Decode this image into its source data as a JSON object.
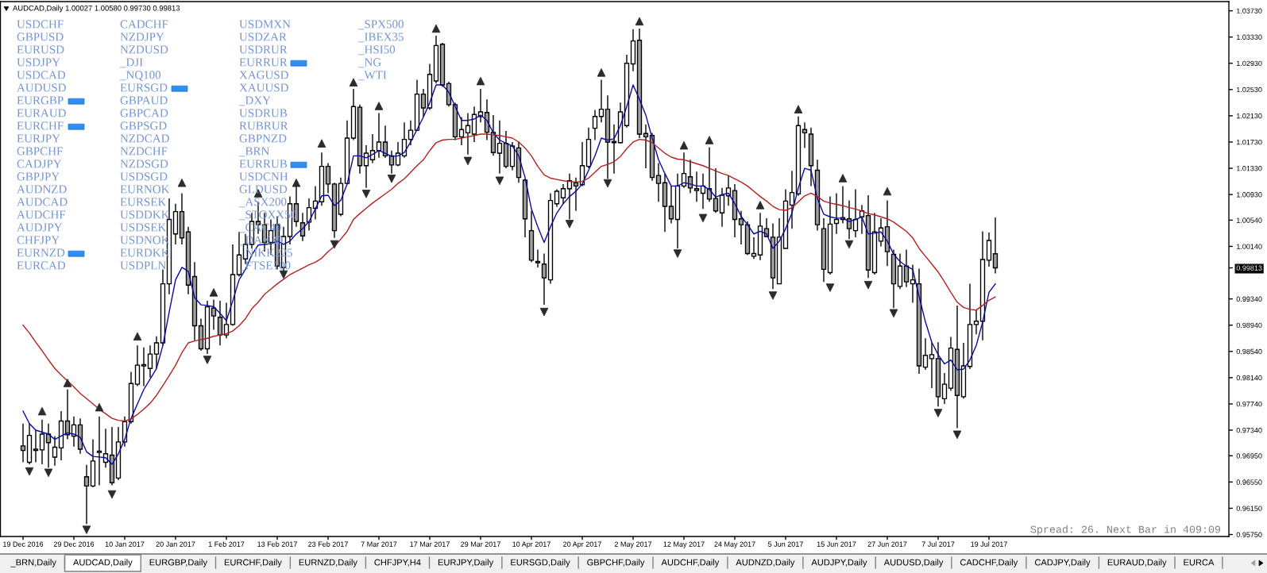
{
  "chart_data": {
    "type": "candlestick",
    "title": "AUDCAD,Daily 1.00027 1.00580 0.99730 0.99813",
    "categories": [
      "19 Dec 2016",
      null,
      null,
      null,
      null,
      null,
      null,
      null,
      "29 Dec 2016",
      null,
      null,
      null,
      null,
      null,
      null,
      null,
      "10 Jan 2017",
      null,
      null,
      null,
      null,
      null,
      null,
      null,
      "20 Jan 2017",
      null,
      null,
      null,
      null,
      null,
      null,
      null,
      "1 Feb 2017",
      null,
      null,
      null,
      null,
      null,
      null,
      null,
      "13 Feb 2017",
      null,
      null,
      null,
      null,
      null,
      null,
      null,
      "23 Feb 2017",
      null,
      null,
      null,
      null,
      null,
      null,
      null,
      "7 Mar 2017",
      null,
      null,
      null,
      null,
      null,
      null,
      null,
      "17 Mar 2017",
      null,
      null,
      null,
      null,
      null,
      null,
      null,
      "29 Mar 2017",
      null,
      null,
      null,
      null,
      null,
      null,
      null,
      "10 Apr 2017",
      null,
      null,
      null,
      null,
      null,
      null,
      null,
      "20 Apr 2017",
      null,
      null,
      null,
      null,
      null,
      null,
      null,
      "2 May 2017",
      null,
      null,
      null,
      null,
      null,
      null,
      null,
      "12 May 2017",
      null,
      null,
      null,
      null,
      null,
      null,
      null,
      "24 May 2017",
      null,
      null,
      null,
      null,
      null,
      null,
      null,
      "5 Jun 2017",
      null,
      null,
      null,
      null,
      null,
      null,
      null,
      "15 Jun 2017",
      null,
      null,
      null,
      null,
      null,
      null,
      null,
      "27 Jun 2017",
      null,
      null,
      null,
      null,
      null,
      null,
      null,
      "7 Jul 2017",
      null,
      null,
      null,
      null,
      null,
      null,
      null,
      "19 Jul 2017",
      null
    ],
    "ohlc": [
      [
        0.971,
        0.9744,
        0.9685,
        0.9703
      ],
      [
        0.9685,
        0.9744,
        0.9682,
        0.9726
      ],
      [
        0.9703,
        0.9734,
        0.9685,
        0.9705
      ],
      [
        0.9704,
        0.975,
        0.9682,
        0.9728
      ],
      [
        0.9728,
        0.9744,
        0.9677,
        0.9715
      ],
      [
        0.9693,
        0.9725,
        0.968,
        0.9708
      ],
      [
        0.9707,
        0.9763,
        0.9688,
        0.9748
      ],
      [
        0.9748,
        0.9796,
        0.972,
        0.9727
      ],
      [
        0.9725,
        0.9755,
        0.9709,
        0.9742
      ],
      [
        0.9742,
        0.9752,
        0.9698,
        0.9705
      ],
      [
        0.9663,
        0.9681,
        0.9591,
        0.9649
      ],
      [
        0.9649,
        0.972,
        0.9647,
        0.9687
      ],
      [
        0.97,
        0.9755,
        0.965,
        0.9702
      ],
      [
        0.9685,
        0.9736,
        0.9677,
        0.9698
      ],
      [
        0.9696,
        0.9739,
        0.965,
        0.9654
      ],
      [
        0.9661,
        0.9739,
        0.9658,
        0.9716
      ],
      [
        0.9716,
        0.9755,
        0.9709,
        0.9747
      ],
      [
        0.9747,
        0.9823,
        0.9744,
        0.9805
      ],
      [
        0.9804,
        0.9863,
        0.9801,
        0.9833
      ],
      [
        0.9832,
        0.986,
        0.9801,
        0.9834
      ],
      [
        0.9828,
        0.9863,
        0.9814,
        0.985
      ],
      [
        0.985,
        0.9877,
        0.9828,
        0.9867
      ],
      [
        0.9867,
        0.9979,
        0.9863,
        0.9957
      ],
      [
        0.9957,
        1.0087,
        0.9941,
        1.0055
      ],
      [
        1.0033,
        1.0079,
        1.0017,
        1.0067
      ],
      [
        1.0067,
        1.0095,
        1.0017,
        1.0027
      ],
      [
        1.0036,
        1.0044,
        0.9941,
        0.9955
      ],
      [
        0.9968,
        0.999,
        0.9871,
        0.9893
      ],
      [
        0.9893,
        0.9904,
        0.9855,
        0.9858
      ],
      [
        0.9858,
        0.9931,
        0.985,
        0.9922
      ],
      [
        0.992,
        0.9933,
        0.9887,
        0.9908
      ],
      [
        0.9906,
        0.9931,
        0.9863,
        0.9879
      ],
      [
        0.9879,
        0.9928,
        0.9874,
        0.9895
      ],
      [
        0.9895,
        1.0017,
        0.9893,
        0.9971
      ],
      [
        0.9971,
        1.0036,
        0.9968,
        1.0001
      ],
      [
        0.9995,
        1.0033,
        0.9987,
        1.0017
      ],
      [
        1.0017,
        1.0065,
        1.0011,
        1.0052
      ],
      [
        1.0052,
        1.0082,
        1.0033,
        1.0047
      ],
      [
        1.0047,
        1.0065,
        1.0006,
        1.002
      ],
      [
        1.002,
        1.0055,
        1.0001,
        1.0038
      ],
      [
        1.0047,
        1.006,
        0.9979,
        0.9984
      ],
      [
        0.9982,
        1.0044,
        0.9976,
        1.0029
      ],
      [
        1.0029,
        1.009,
        1.0017,
        1.0079
      ],
      [
        1.0079,
        1.0106,
        1.0044,
        1.0052
      ],
      [
        1.005,
        1.0065,
        1.0022,
        1.003
      ],
      [
        1.0051,
        1.0087,
        1.0038,
        1.0073
      ],
      [
        1.0072,
        1.0106,
        1.0055,
        1.0083
      ],
      [
        1.0082,
        1.0157,
        1.0076,
        1.0136
      ],
      [
        1.0136,
        1.0141,
        1.0095,
        1.0109
      ],
      [
        1.0109,
        1.0111,
        1.0027,
        1.0038
      ],
      [
        1.0063,
        1.0119,
        1.006,
        1.011
      ],
      [
        1.011,
        1.0206,
        1.0109,
        1.0179
      ],
      [
        1.0179,
        1.0254,
        1.0176,
        1.0227
      ],
      [
        1.0226,
        1.023,
        1.0125,
        1.0137
      ],
      [
        1.0137,
        1.0168,
        1.0103,
        1.0156
      ],
      [
        1.0146,
        1.0185,
        1.0141,
        1.016
      ],
      [
        1.016,
        1.0217,
        1.0149,
        1.0173
      ],
      [
        1.0173,
        1.0198,
        1.0149,
        1.0152
      ],
      [
        1.0152,
        1.016,
        1.0125,
        1.0138
      ],
      [
        1.0138,
        1.0173,
        1.0136,
        1.0156
      ],
      [
        1.0152,
        1.0203,
        1.0149,
        1.0177
      ],
      [
        1.0177,
        1.0206,
        1.0168,
        1.0191
      ],
      [
        1.0191,
        1.0268,
        1.019,
        1.0246
      ],
      [
        1.0246,
        1.0254,
        1.0211,
        1.0225
      ],
      [
        1.0225,
        1.0292,
        1.0222,
        1.0276
      ],
      [
        1.0266,
        1.0335,
        1.0262,
        1.032
      ],
      [
        1.0322,
        1.0324,
        1.0257,
        1.026
      ],
      [
        1.0262,
        1.0265,
        1.0227,
        1.023
      ],
      [
        1.023,
        1.0233,
        1.0176,
        1.0181
      ],
      [
        1.0181,
        1.0211,
        1.0168,
        1.0192
      ],
      [
        1.0187,
        1.0217,
        1.0154,
        1.0198
      ],
      [
        1.0185,
        1.0227,
        1.0173,
        1.0215
      ],
      [
        1.0212,
        1.0254,
        1.0203,
        1.0219
      ],
      [
        1.0218,
        1.0238,
        1.0176,
        1.0188
      ],
      [
        1.0188,
        1.0214,
        1.0152,
        1.0157
      ],
      [
        1.0156,
        1.0206,
        1.0125,
        1.0171
      ],
      [
        1.0171,
        1.019,
        1.0133,
        1.0136
      ],
      [
        1.0136,
        1.0173,
        1.013,
        1.0167
      ],
      [
        1.0164,
        1.0174,
        1.0111,
        1.0119
      ],
      [
        1.0115,
        1.0117,
        1.0028,
        1.0056
      ],
      [
        1.0038,
        1.0068,
        0.999,
        0.9993
      ],
      [
        0.9991,
        1.0009,
        0.9982,
        0.9989
      ],
      [
        0.9987,
        1.0003,
        0.9925,
        0.9966
      ],
      [
        0.9963,
        1.0095,
        0.9957,
        1.0084
      ],
      [
        1.0079,
        1.0101,
        1.0074,
        1.0098
      ],
      [
        1.0088,
        1.0109,
        1.0079,
        1.0102
      ],
      [
        1.0102,
        1.0125,
        1.0055,
        1.0114
      ],
      [
        1.0111,
        1.0119,
        1.0068,
        1.0106
      ],
      [
        1.0108,
        1.0173,
        1.0106,
        1.0137
      ],
      [
        1.0136,
        1.0195,
        1.0133,
        1.0177
      ],
      [
        1.0194,
        1.0222,
        1.0176,
        1.0212
      ],
      [
        1.0212,
        1.0268,
        1.0203,
        1.0223
      ],
      [
        1.0223,
        1.0244,
        1.0117,
        1.0173
      ],
      [
        1.0174,
        1.02,
        1.0125,
        1.0172
      ],
      [
        1.0172,
        1.0233,
        1.0171,
        1.0219
      ],
      [
        1.0198,
        1.0306,
        1.0195,
        1.0293
      ],
      [
        1.0292,
        1.0345,
        1.0281,
        1.0327
      ],
      [
        1.0328,
        1.0346,
        1.0179,
        1.0185
      ],
      [
        1.0186,
        1.02,
        1.0133,
        1.0181
      ],
      [
        1.0183,
        1.0187,
        1.0114,
        1.0119
      ],
      [
        1.0122,
        1.0141,
        1.0082,
        1.011
      ],
      [
        1.0111,
        1.0125,
        1.0036,
        1.0075
      ],
      [
        1.0075,
        1.0106,
        1.0049,
        1.0056
      ],
      [
        1.0055,
        1.0125,
        1.0011,
        1.0106
      ],
      [
        1.0106,
        1.0157,
        1.0103,
        1.0125
      ],
      [
        1.012,
        1.0146,
        1.0095,
        1.0103
      ],
      [
        1.0102,
        1.0128,
        1.0082,
        1.0099
      ],
      [
        1.0095,
        1.0125,
        1.0071,
        1.0106
      ],
      [
        1.0102,
        1.0165,
        1.0082,
        1.0086
      ],
      [
        1.0087,
        1.0133,
        1.0065,
        1.0068
      ],
      [
        1.0065,
        1.0103,
        1.0044,
        1.0092
      ],
      [
        1.0091,
        1.0122,
        1.0076,
        1.0103
      ],
      [
        1.0099,
        1.0109,
        1.0028,
        1.0055
      ],
      [
        1.0056,
        1.0068,
        1.0017,
        1.0047
      ],
      [
        1.0047,
        1.0052,
        1.0001,
        1.0003
      ],
      [
        0.9999,
        1.0028,
        0.9995,
        1.0003
      ],
      [
        1.0001,
        1.0065,
        0.9993,
        1.0045
      ],
      [
        1.0041,
        1.0057,
        1.0028,
        1.0029
      ],
      [
        1.0028,
        1.0049,
        0.9949,
        0.9966
      ],
      [
        0.9957,
        1.0057,
        0.9957,
        1.0028
      ],
      [
        1.0011,
        1.0101,
        1.0011,
        1.0083
      ],
      [
        1.0077,
        1.0129,
        1.0041,
        1.0096
      ],
      [
        1.0094,
        1.0212,
        1.0091,
        1.0198
      ],
      [
        1.0192,
        1.0203,
        1.0164,
        1.0187
      ],
      [
        1.0185,
        1.0195,
        1.0106,
        1.0137
      ],
      [
        1.013,
        1.0146,
        1.0038,
        1.0047
      ],
      [
        1.0041,
        1.0057,
        0.996,
        0.9979
      ],
      [
        0.9974,
        1.009,
        0.9971,
        1.0048
      ],
      [
        1.0049,
        1.0095,
        1.0033,
        1.0055
      ],
      [
        1.0055,
        1.0106,
        1.0049,
        1.0058
      ],
      [
        1.0056,
        1.0084,
        1.0025,
        1.0041
      ],
      [
        1.0038,
        1.0101,
        1.0028,
        1.0055
      ],
      [
        1.0059,
        1.0077,
        1.0033,
        1.0068
      ],
      [
        1.0061,
        1.0092,
        0.9966,
        0.9978
      ],
      [
        0.9974,
        1.0065,
        0.9971,
        1.0036
      ],
      [
        1.0022,
        1.0057,
        1.0014,
        1.0042
      ],
      [
        1.0044,
        1.0084,
        0.9984,
        1.0006
      ],
      [
        1.0002,
        1.0009,
        0.992,
        0.9957
      ],
      [
        0.9953,
        1.0003,
        0.9949,
        0.9984
      ],
      [
        0.9984,
        1.0009,
        0.9952,
        0.996
      ],
      [
        0.9957,
        0.9986,
        0.9928,
        0.9963
      ],
      [
        0.9957,
        0.998,
        0.982,
        0.9832
      ],
      [
        0.983,
        0.9874,
        0.9826,
        0.9848
      ],
      [
        0.9843,
        0.9868,
        0.9798,
        0.9849
      ],
      [
        0.9843,
        0.9868,
        0.977,
        0.9785
      ],
      [
        0.9782,
        0.9821,
        0.9774,
        0.9804
      ],
      [
        0.9798,
        0.9876,
        0.9794,
        0.9859
      ],
      [
        0.9857,
        0.9924,
        0.9737,
        0.9787
      ],
      [
        0.9785,
        0.9867,
        0.9782,
        0.9832
      ],
      [
        0.9831,
        0.9957,
        0.9827,
        0.9895
      ],
      [
        0.9895,
        0.9917,
        0.988,
        0.99
      ],
      [
        0.99,
        1.0037,
        0.9871,
        0.9994
      ],
      [
        0.9993,
        1.0035,
        0.9983,
        1.0023
      ],
      [
        1.00027,
        1.0058,
        0.9973,
        0.99813
      ]
    ],
    "colors": [
      "#a0a0a0",
      "#ffffff",
      "#ffffff",
      "#ffffff",
      "#a0a0a0",
      "#ffffff",
      "#ffffff",
      "#a0a0a0",
      "#ffffff",
      "#a0a0a0",
      "#a0a0a0",
      "#ffffff",
      "#ffffff",
      "#ffffff",
      "#a0a0a0",
      "#ffffff",
      "#ffffff",
      "#ffffff",
      "#ffffff",
      "#ffffff",
      "#ffffff",
      "#ffffff",
      "#ffffff",
      "#ffffff",
      "#ffffff",
      "#a0a0a0",
      "#a0a0a0",
      "#a0a0a0",
      "#a0a0a0",
      "#ffffff",
      "#a0a0a0",
      "#a0a0a0",
      "#ffffff",
      "#ffffff",
      "#ffffff",
      "#ffffff",
      "#ffffff",
      "#a0a0a0",
      "#a0a0a0",
      "#ffffff",
      "#a0a0a0",
      "#ffffff",
      "#ffffff",
      "#a0a0a0",
      "#a0a0a0",
      "#ffffff",
      "#ffffff",
      "#ffffff",
      "#a0a0a0",
      "#a0a0a0",
      "#ffffff",
      "#ffffff",
      "#ffffff",
      "#a0a0a0",
      "#ffffff",
      "#ffffff",
      "#ffffff",
      "#a0a0a0",
      "#a0a0a0",
      "#ffffff",
      "#ffffff",
      "#ffffff",
      "#ffffff",
      "#a0a0a0",
      "#ffffff",
      "#ffffff",
      "#a0a0a0",
      "#a0a0a0",
      "#a0a0a0",
      "#ffffff",
      "#ffffff",
      "#ffffff",
      "#ffffff",
      "#a0a0a0",
      "#a0a0a0",
      "#ffffff",
      "#a0a0a0",
      "#ffffff",
      "#a0a0a0",
      "#a0a0a0",
      "#a0a0a0",
      "#a0a0a0",
      "#a0a0a0",
      "#ffffff",
      "#ffffff",
      "#ffffff",
      "#ffffff",
      "#a0a0a0",
      "#ffffff",
      "#ffffff",
      "#ffffff",
      "#ffffff",
      "#a0a0a0",
      "#a0a0a0",
      "#ffffff",
      "#ffffff",
      "#ffffff",
      "#a0a0a0",
      "#a0a0a0",
      "#a0a0a0",
      "#a0a0a0",
      "#a0a0a0",
      "#a0a0a0",
      "#ffffff",
      "#ffffff",
      "#a0a0a0",
      "#a0a0a0",
      "#ffffff",
      "#a0a0a0",
      "#a0a0a0",
      "#ffffff",
      "#ffffff",
      "#a0a0a0",
      "#a0a0a0",
      "#a0a0a0",
      "#ffffff",
      "#ffffff",
      "#a0a0a0",
      "#a0a0a0",
      "#ffffff",
      "#ffffff",
      "#ffffff",
      "#ffffff",
      "#a0a0a0",
      "#a0a0a0",
      "#a0a0a0",
      "#a0a0a0",
      "#ffffff",
      "#ffffff",
      "#ffffff",
      "#a0a0a0",
      "#ffffff",
      "#ffffff",
      "#a0a0a0",
      "#ffffff",
      "#ffffff",
      "#a0a0a0",
      "#a0a0a0",
      "#ffffff",
      "#a0a0a0",
      "#ffffff",
      "#a0a0a0",
      "#ffffff",
      "#ffffff",
      "#a0a0a0",
      "#ffffff",
      "#ffffff",
      "#a0a0a0",
      "#ffffff",
      "#ffffff",
      "#ffffff",
      "#ffffff",
      "#ffffff",
      "#a0a0a0"
    ],
    "series": [
      {
        "type": "line",
        "color": "#0a0aa0",
        "values": [
          0.9763,
          0.9744,
          0.9734,
          0.9731,
          0.9728,
          0.972,
          0.9725,
          0.973,
          0.9728,
          0.9723,
          0.9701,
          0.9694,
          0.9693,
          0.9692,
          0.9682,
          0.9698,
          0.972,
          0.9752,
          0.9774,
          0.9796,
          0.9812,
          0.9828,
          0.9863,
          0.9914,
          0.9963,
          0.9982,
          0.9976,
          0.9936,
          0.9925,
          0.9924,
          0.9922,
          0.9912,
          0.9901,
          0.9931,
          0.9963,
          0.9979,
          1.0001,
          1.0016,
          1.0017,
          1.0018,
          1.0022,
          1.0017,
          1.0022,
          1.0033,
          1.0041,
          1.0052,
          1.0071,
          1.0091,
          1.0092,
          1.0076,
          1.0084,
          1.0109,
          1.0152,
          1.0152,
          1.0149,
          1.0154,
          1.016,
          1.0156,
          1.0151,
          1.0152,
          1.0157,
          1.0173,
          1.0192,
          1.0211,
          1.0233,
          1.026,
          1.026,
          1.0249,
          1.0227,
          1.0206,
          1.0206,
          1.0208,
          1.0214,
          1.0206,
          1.0187,
          1.0176,
          1.0171,
          1.0167,
          1.0152,
          1.0119,
          1.0071,
          1.0044,
          1.002,
          1.0044,
          1.0065,
          1.0079,
          1.009,
          1.0098,
          1.0109,
          1.013,
          1.0152,
          1.0179,
          1.0176,
          1.0178,
          1.0198,
          1.0227,
          1.026,
          1.0238,
          1.0214,
          1.0179,
          1.0146,
          1.0125,
          1.0106,
          1.0106,
          1.0111,
          1.0109,
          1.0106,
          1.0106,
          1.0101,
          1.0089,
          1.0093,
          1.0095,
          1.0079,
          1.006,
          1.0047,
          1.0033,
          1.0037,
          1.0033,
          1.0011,
          1.0022,
          1.0041,
          1.0065,
          1.0103,
          1.0133,
          1.013,
          1.0087,
          1.0063,
          1.0059,
          1.0057,
          1.0057,
          1.0052,
          1.0055,
          1.0059,
          1.0033,
          1.0034,
          1.0036,
          1.0022,
          1.0002,
          0.9991,
          0.9984,
          0.9979,
          0.9938,
          0.9899,
          0.9868,
          0.9849,
          0.9835,
          0.9841,
          0.9826,
          0.9827,
          0.9841,
          0.9863,
          0.9899,
          0.9944,
          0.9957
        ]
      },
      {
        "type": "line",
        "color": "#b22222",
        "values": [
          0.9894,
          0.9882,
          0.9868,
          0.9855,
          0.9841,
          0.9828,
          0.9818,
          0.9809,
          0.98,
          0.979,
          0.9782,
          0.9774,
          0.9766,
          0.9759,
          0.9752,
          0.9749,
          0.9748,
          0.9751,
          0.9758,
          0.9766,
          0.9775,
          0.9787,
          0.9802,
          0.9817,
          0.9833,
          0.9852,
          0.9867,
          0.987,
          0.9872,
          0.9874,
          0.9877,
          0.9879,
          0.9881,
          0.9885,
          0.9893,
          0.9904,
          0.9919,
          0.9929,
          0.9941,
          0.9949,
          0.9957,
          0.9964,
          0.9971,
          0.9976,
          0.9981,
          0.9986,
          0.999,
          0.9996,
          1.0006,
          1.0014,
          1.0025,
          1.0037,
          1.0055,
          1.0064,
          1.0072,
          1.008,
          1.0087,
          1.0094,
          1.0101,
          1.011,
          1.0117,
          1.0127,
          1.0137,
          1.0146,
          1.016,
          1.0172,
          1.0176,
          1.0177,
          1.0177,
          1.0179,
          1.0181,
          1.0183,
          1.0185,
          1.0185,
          1.0184,
          1.0183,
          1.0181,
          1.0179,
          1.0173,
          1.0164,
          1.0152,
          1.0136,
          1.0123,
          1.0118,
          1.0116,
          1.0114,
          1.0113,
          1.0112,
          1.0113,
          1.0118,
          1.0127,
          1.0136,
          1.0139,
          1.0143,
          1.0151,
          1.0163,
          1.0173,
          1.0177,
          1.0176,
          1.0172,
          1.0164,
          1.0156,
          1.015,
          1.0147,
          1.0146,
          1.0143,
          1.014,
          1.0137,
          1.0133,
          1.0129,
          1.0125,
          1.0122,
          1.0117,
          1.0112,
          1.0106,
          1.0098,
          1.009,
          1.0083,
          1.0075,
          1.007,
          1.0069,
          1.0073,
          1.0082,
          1.0091,
          1.0095,
          1.009,
          1.0083,
          1.008,
          1.0078,
          1.0076,
          1.0073,
          1.0071,
          1.0068,
          1.0064,
          1.0062,
          1.0059,
          1.0056,
          1.0051,
          1.0044,
          1.0037,
          1.0027,
          1.0011,
          0.9999,
          0.9987,
          0.9975,
          0.996,
          0.9944,
          0.9929,
          0.9921,
          0.9918,
          0.9917,
          0.9924,
          0.9932,
          0.9937
        ]
      },
      {
        "type": "scatter",
        "color": "#2b2b2b",
        "marker": "triangle",
        "values": [
          null,
          0.9671,
          null,
          0.9763,
          0.9669,
          null,
          null,
          0.9806,
          null,
          null,
          0.9582,
          null,
          0.9769,
          null,
          0.9636,
          null,
          null,
          null,
          0.9877,
          null,
          null,
          null,
          null,
          null,
          null,
          1.0111,
          null,
          null,
          null,
          0.9841,
          0.9944,
          null,
          null,
          null,
          null,
          null,
          null,
          1.0095,
          null,
          null,
          null,
          0.9971,
          null,
          1.0111,
          null,
          null,
          null,
          1.0171,
          null,
          1.0017,
          null,
          null,
          1.0264,
          null,
          1.0094,
          null,
          1.0228,
          null,
          1.0117,
          null,
          null,
          null,
          null,
          null,
          null,
          1.0346,
          null,
          null,
          null,
          null,
          1.0144,
          null,
          1.0266,
          null,
          null,
          1.0114,
          null,
          null,
          null,
          null,
          null,
          null,
          0.9914,
          null,
          null,
          null,
          1.0048,
          null,
          null,
          null,
          null,
          1.0279,
          1.011,
          null,
          null,
          null,
          null,
          1.0357,
          null,
          null,
          null,
          null,
          null,
          1.0003,
          1.0168,
          null,
          null,
          1.0057,
          1.0176,
          null,
          null,
          null,
          null,
          null,
          null,
          null,
          1.0077,
          null,
          0.9939,
          null,
          null,
          null,
          1.0223,
          null,
          null,
          null,
          null,
          0.9951,
          null,
          1.0118,
          1.0017,
          null,
          null,
          0.9955,
          null,
          null,
          1.0098,
          0.9912,
          null,
          null,
          null,
          null,
          null,
          null,
          0.976,
          null,
          null,
          0.9727,
          null,
          null,
          null,
          null,
          null,
          null
        ]
      }
    ],
    "ylim": [
      0.9572,
      1.0387
    ],
    "yticks": [
      {
        "value": 1.0373,
        "label": "1.03730"
      },
      {
        "value": 1.0333,
        "label": "1.03330"
      },
      {
        "value": 1.0293,
        "label": "1.02930"
      },
      {
        "value": 1.0253,
        "label": "1.02530"
      },
      {
        "value": 1.0213,
        "label": "1.02130"
      },
      {
        "value": 1.0173,
        "label": "1.01730"
      },
      {
        "value": 1.0133,
        "label": "1.01330"
      },
      {
        "value": 1.0093,
        "label": "1.00930"
      },
      {
        "value": 1.0054,
        "label": "1.00540"
      },
      {
        "value": 1.0014,
        "label": "1.00140"
      },
      {
        "value": 0.9934,
        "label": "0.99340"
      },
      {
        "value": 0.9894,
        "label": "0.98940"
      },
      {
        "value": 0.9854,
        "label": "0.98540"
      },
      {
        "value": 0.9814,
        "label": "0.98140"
      },
      {
        "value": 0.9774,
        "label": "0.97740"
      },
      {
        "value": 0.9734,
        "label": "0.97340"
      },
      {
        "value": 0.9695,
        "label": "0.96950"
      },
      {
        "value": 0.9655,
        "label": "0.96550"
      },
      {
        "value": 0.9615,
        "label": "0.96150"
      },
      {
        "value": 0.9575,
        "label": "0.95750"
      },
      {
        "value": 0.99813,
        "label": "0.99813"
      }
    ],
    "annotations": [
      "Spread: 26. Next Bar in 409:09",
      "USDCHF",
      "GBPUSD",
      "EURUSD",
      "USDJPY",
      "USDCAD",
      "AUDUSD",
      "EURGBP",
      "EURAUD",
      "EURCHF",
      "EURJPY",
      "GBPCHF",
      "CADJPY",
      "GBPJPY",
      "AUDNZD",
      "AUDCAD",
      "AUDCHF",
      "AUDJPY",
      "CHFJPY",
      "EURNZD",
      "EURCAD",
      "CADCHF",
      "NZDJPY",
      "NZDUSD",
      "_DJI",
      "_NQ100",
      "EURSGD",
      "GBPAUD",
      "GBPCAD",
      "GBPSGD",
      "NZDCAD",
      "NZDCHF",
      "NZDSGD",
      "USDSGD",
      "EURNOK",
      "EURSEK",
      "USDDKK",
      "USDSEK",
      "USDNOK",
      "EURDKK",
      "USDPLN",
      "USDMXN",
      "USDZAR",
      "USDRUR",
      "EURRUR",
      "XAGUSD",
      "XAUUSD",
      "_DXY",
      "USDRUB",
      "RUBRUR",
      "GBPNZD",
      "_BRN",
      "EURRUB",
      "USDCNH",
      "GLDUSD",
      "_ASX200",
      "_STOXX50",
      "_CAC40",
      "_DAX30",
      "_NIKK225",
      "_FTSE100",
      "_SPX500",
      "_IBEX35",
      "_HSI50",
      "_NG",
      "_WTI",
      "_BRN,Daily",
      "AUDCAD,Daily",
      "EURGBP,Daily",
      "EURCHF,Daily",
      "EURNZD,Daily",
      "CHFJPY,H4",
      "EURJPY,Daily",
      "EURSGD,Daily",
      "GBPCHF,Daily",
      "AUDCHF,Daily",
      "AUDNZD,Daily",
      "AUDJPY,Daily",
      "AUDUSD,Daily",
      "CADCHF,Daily",
      "CADJPY,Daily",
      "EURAUD,Daily",
      "EURCA"
    ]
  }
}
